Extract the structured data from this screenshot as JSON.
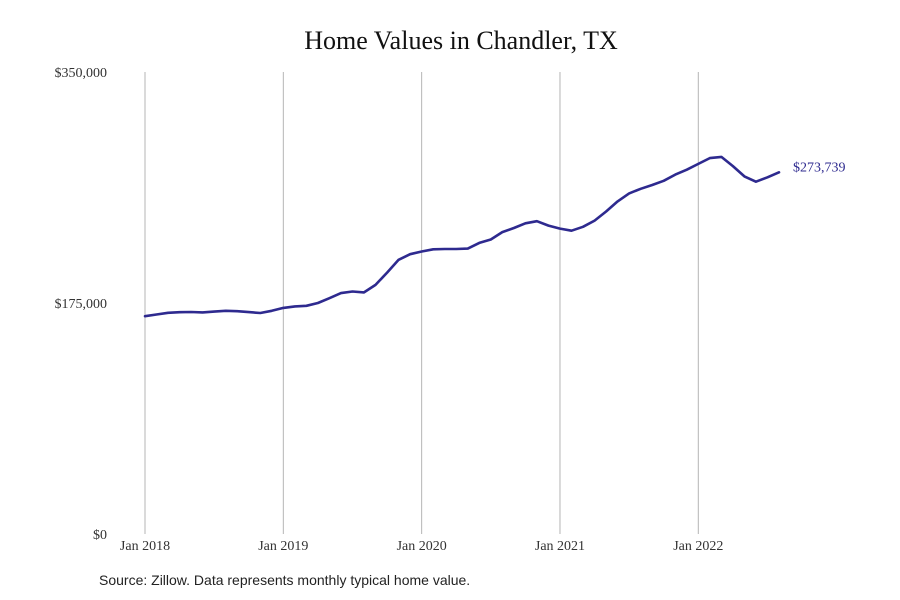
{
  "chart_data": {
    "type": "line",
    "title": "Home Values in Chandler, TX",
    "xlabel": "",
    "ylabel": "",
    "ylim": [
      0,
      350000
    ],
    "xlim": [
      "2018-01",
      "2022-08"
    ],
    "y_ticks": [
      {
        "value": 0,
        "label": "$0"
      },
      {
        "value": 175000,
        "label": "$175,000"
      },
      {
        "value": 350000,
        "label": "$350,000"
      }
    ],
    "x_ticks": [
      {
        "value": "2018-01",
        "label": "Jan 2018"
      },
      {
        "value": "2019-01",
        "label": "Jan 2019"
      },
      {
        "value": "2020-01",
        "label": "Jan 2020"
      },
      {
        "value": "2021-01",
        "label": "Jan 2021"
      },
      {
        "value": "2022-01",
        "label": "Jan 2022"
      }
    ],
    "grid": "vertical",
    "legend": "none",
    "line_color": "#2e2a8f",
    "end_label": "$273,739",
    "series": [
      {
        "x": [
          "2018-01",
          "2018-02",
          "2018-03",
          "2018-04",
          "2018-05",
          "2018-06",
          "2018-07",
          "2018-08",
          "2018-09",
          "2018-10",
          "2018-11",
          "2018-12",
          "2019-01",
          "2019-02",
          "2019-03",
          "2019-04",
          "2019-05",
          "2019-06",
          "2019-07",
          "2019-08",
          "2019-09",
          "2019-10",
          "2019-11",
          "2019-12",
          "2020-01",
          "2020-02",
          "2020-03",
          "2020-04",
          "2020-05",
          "2020-06",
          "2020-07",
          "2020-08",
          "2020-09",
          "2020-10",
          "2020-11",
          "2020-12",
          "2021-01",
          "2021-02",
          "2021-03",
          "2021-04",
          "2021-05",
          "2021-06",
          "2021-07",
          "2021-08",
          "2021-09",
          "2021-10",
          "2021-11",
          "2021-12",
          "2022-01",
          "2022-02",
          "2022-03",
          "2022-04",
          "2022-05",
          "2022-06",
          "2022-07",
          "2022-08"
        ],
        "values": [
          165000,
          166300,
          167600,
          168000,
          168200,
          167900,
          168500,
          169100,
          168800,
          168100,
          167400,
          169100,
          171300,
          172400,
          172900,
          175000,
          178600,
          182500,
          183700,
          183000,
          188700,
          198000,
          207700,
          212000,
          214000,
          215700,
          215900,
          215900,
          216200,
          220500,
          223100,
          228700,
          231800,
          235400,
          237000,
          233600,
          231400,
          229800,
          232700,
          237400,
          244300,
          252000,
          258000,
          261500,
          264400,
          267600,
          272300,
          276000,
          280400,
          284800,
          285700,
          278700,
          270900,
          266900,
          270200,
          274000
        ]
      }
    ]
  },
  "source": "Source: Zillow. Data represents monthly typical home value."
}
